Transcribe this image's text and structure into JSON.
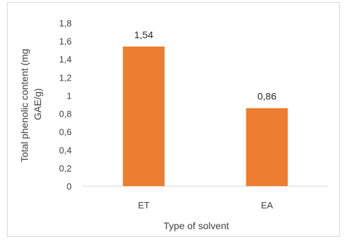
{
  "chart_data": {
    "type": "bar",
    "title": "",
    "categories": [
      "ET",
      "EA"
    ],
    "values": [
      1.54,
      0.86
    ],
    "value_labels": [
      "1,54",
      "0,86"
    ],
    "xlabel": "Type of solvent",
    "ylabel_lines": [
      "Total phenolic content (mg",
      "GAE/g)"
    ],
    "ylim": [
      0,
      1.8
    ],
    "yticks": [
      "0",
      "0,2",
      "0,4",
      "0,6",
      "0,8",
      "1",
      "1,2",
      "1,4",
      "1,6",
      "1,8"
    ],
    "grid": false,
    "legend": "none",
    "bar_color": "#ED7D31"
  }
}
